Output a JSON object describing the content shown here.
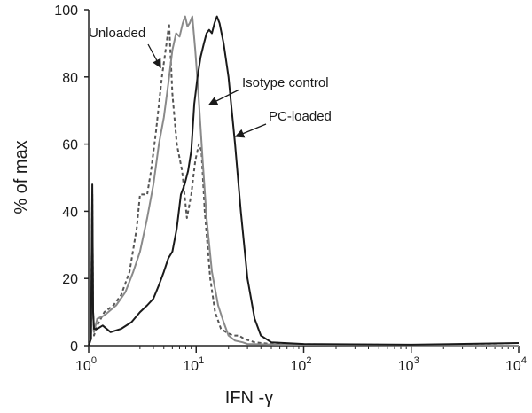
{
  "chart_data": {
    "type": "line",
    "title": "",
    "xlabel": "IFN -γ",
    "ylabel": "% of max",
    "x_scale": "log",
    "xlim": [
      1,
      10000
    ],
    "ylim": [
      0,
      100
    ],
    "x_ticks": [
      {
        "value": 1,
        "base": "10",
        "exp": "0"
      },
      {
        "value": 10,
        "base": "10",
        "exp": "1"
      },
      {
        "value": 100,
        "base": "10",
        "exp": "2"
      },
      {
        "value": 1000,
        "base": "10",
        "exp": "3"
      },
      {
        "value": 10000,
        "base": "10",
        "exp": "4"
      }
    ],
    "y_ticks": [
      0,
      20,
      40,
      60,
      80,
      100
    ],
    "grid": false,
    "legend": "none",
    "series": [
      {
        "name": "Unloaded",
        "style": "dashed",
        "color": "#555555",
        "points": [
          [
            1.0,
            0
          ],
          [
            1.05,
            2
          ],
          [
            1.08,
            45
          ],
          [
            1.1,
            10
          ],
          [
            1.12,
            3
          ],
          [
            1.2,
            6
          ],
          [
            1.4,
            10
          ],
          [
            1.7,
            12
          ],
          [
            2.0,
            15
          ],
          [
            2.4,
            22
          ],
          [
            2.8,
            35
          ],
          [
            3.0,
            45
          ],
          [
            3.5,
            45
          ],
          [
            3.8,
            52
          ],
          [
            4.2,
            63
          ],
          [
            4.8,
            80
          ],
          [
            5.3,
            90
          ],
          [
            5.6,
            96
          ],
          [
            6.0,
            75
          ],
          [
            6.6,
            60
          ],
          [
            7.4,
            52
          ],
          [
            8.2,
            38
          ],
          [
            9.0,
            45
          ],
          [
            9.8,
            55
          ],
          [
            10.6,
            60
          ],
          [
            11.2,
            58
          ],
          [
            12.0,
            40
          ],
          [
            13.5,
            20
          ],
          [
            15.0,
            10
          ],
          [
            17.0,
            5
          ],
          [
            19.0,
            4
          ],
          [
            22.0,
            3
          ],
          [
            25.0,
            3
          ],
          [
            28.0,
            2
          ],
          [
            35.0,
            1
          ],
          [
            50.0,
            0.5
          ],
          [
            10000,
            0
          ]
        ]
      },
      {
        "name": "Isotype control",
        "style": "solid",
        "color": "#8a8a8a",
        "points": [
          [
            1.0,
            0
          ],
          [
            1.05,
            2
          ],
          [
            1.08,
            45
          ],
          [
            1.1,
            10
          ],
          [
            1.12,
            4
          ],
          [
            1.2,
            8
          ],
          [
            1.4,
            9
          ],
          [
            1.8,
            12
          ],
          [
            2.2,
            16
          ],
          [
            2.6,
            22
          ],
          [
            3.0,
            28
          ],
          [
            3.5,
            38
          ],
          [
            4.0,
            48
          ],
          [
            4.5,
            60
          ],
          [
            5.0,
            68
          ],
          [
            5.5,
            78
          ],
          [
            6.0,
            88
          ],
          [
            6.5,
            93
          ],
          [
            7.0,
            92
          ],
          [
            7.5,
            96
          ],
          [
            7.9,
            98
          ],
          [
            8.3,
            95
          ],
          [
            8.7,
            96
          ],
          [
            9.2,
            98
          ],
          [
            9.8,
            88
          ],
          [
            10.5,
            75
          ],
          [
            11.5,
            55
          ],
          [
            12.5,
            38
          ],
          [
            14.0,
            22
          ],
          [
            16.0,
            12
          ],
          [
            18.0,
            7
          ],
          [
            20.0,
            3
          ],
          [
            23.0,
            1.5
          ],
          [
            27.0,
            1
          ],
          [
            30.0,
            0.5
          ],
          [
            60.0,
            0.3
          ],
          [
            10000,
            0
          ]
        ]
      },
      {
        "name": "PC-loaded",
        "style": "solid",
        "color": "#1a1a1a",
        "points": [
          [
            1.0,
            0
          ],
          [
            1.05,
            2
          ],
          [
            1.08,
            48
          ],
          [
            1.1,
            10
          ],
          [
            1.12,
            5
          ],
          [
            1.2,
            5
          ],
          [
            1.35,
            6
          ],
          [
            1.6,
            4
          ],
          [
            2.0,
            5
          ],
          [
            2.5,
            7
          ],
          [
            3.0,
            10
          ],
          [
            3.5,
            12
          ],
          [
            4.0,
            14
          ],
          [
            4.5,
            18
          ],
          [
            5.0,
            22
          ],
          [
            5.5,
            26
          ],
          [
            6.0,
            28
          ],
          [
            6.6,
            35
          ],
          [
            7.2,
            45
          ],
          [
            7.8,
            48
          ],
          [
            8.4,
            52
          ],
          [
            9.0,
            58
          ],
          [
            9.6,
            72
          ],
          [
            10.3,
            80
          ],
          [
            11.0,
            86
          ],
          [
            11.8,
            90
          ],
          [
            12.5,
            93
          ],
          [
            13.2,
            94
          ],
          [
            14.0,
            93
          ],
          [
            14.8,
            96
          ],
          [
            15.6,
            98
          ],
          [
            16.5,
            96
          ],
          [
            18.0,
            90
          ],
          [
            20.0,
            80
          ],
          [
            23.0,
            60
          ],
          [
            26.0,
            40
          ],
          [
            30.0,
            20
          ],
          [
            35.0,
            8
          ],
          [
            40.0,
            3
          ],
          [
            50.0,
            1
          ],
          [
            100.0,
            0.5
          ],
          [
            1000,
            0.3
          ],
          [
            10000,
            0.8
          ]
        ]
      }
    ],
    "annotations": [
      {
        "text": "Unloaded",
        "target_series": "Unloaded"
      },
      {
        "text": "Isotype control",
        "target_series": "Isotype control"
      },
      {
        "text": "PC-loaded",
        "target_series": "PC-loaded"
      }
    ]
  }
}
